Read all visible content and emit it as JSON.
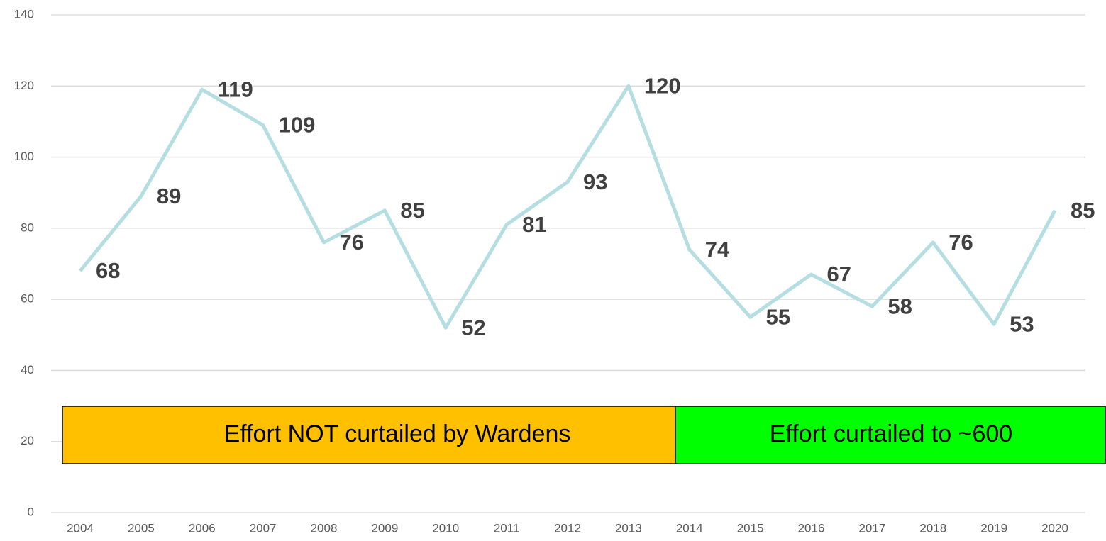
{
  "chart_data": {
    "type": "line",
    "categories": [
      "2004",
      "2005",
      "2006",
      "2007",
      "2008",
      "2009",
      "2010",
      "2011",
      "2012",
      "2013",
      "2014",
      "2015",
      "2016",
      "2017",
      "2018",
      "2019",
      "2020"
    ],
    "values": [
      68,
      89,
      119,
      109,
      76,
      85,
      52,
      81,
      93,
      120,
      74,
      55,
      67,
      58,
      76,
      53,
      85
    ],
    "color": "#b4dee1",
    "ylim": [
      0,
      140
    ],
    "yticks": [
      0,
      20,
      40,
      60,
      80,
      100,
      120,
      140
    ],
    "grid": true,
    "annotations": [
      {
        "text": "Effort NOT curtailed by Wardens",
        "color": "#ffc000"
      },
      {
        "text": "Effort curtailed to ~600",
        "color": "#00ff00"
      }
    ]
  }
}
